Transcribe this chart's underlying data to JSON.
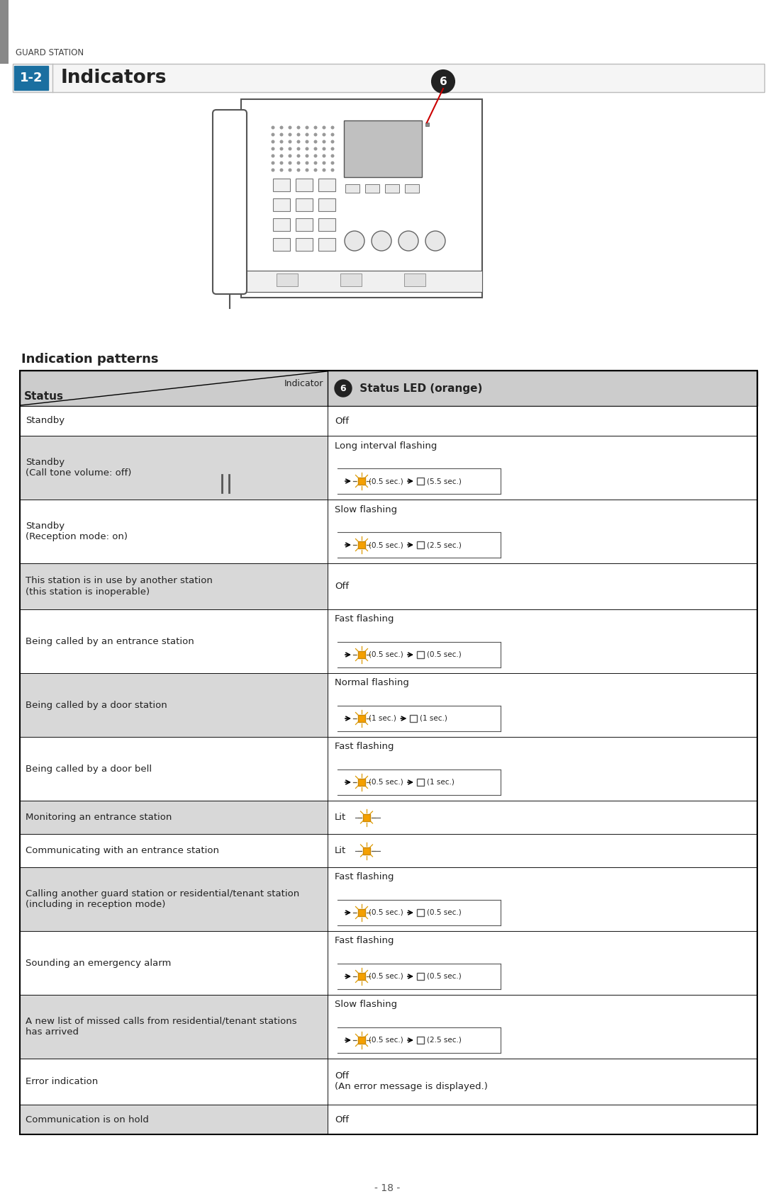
{
  "title": "Indicators",
  "section_num": "1-2",
  "header_text": "GUARD STATION",
  "indication_patterns_label": "Indication patterns",
  "col1_header": "Status",
  "col2_header_indicator": "Indicator",
  "bg_color": "#ffffff",
  "header_bg": "#cccccc",
  "row_bg_gray": "#d8d8d8",
  "row_bg_white": "#ffffff",
  "table_border": "#000000",
  "rows": [
    {
      "status": "Standby",
      "indicator": "Off",
      "type": "text",
      "bg": "white"
    },
    {
      "status": "Standby\n(Call tone volume: off)",
      "indicator": "Long interval flashing",
      "type": "flash",
      "on_sec": "0.5 sec.",
      "off_sec": "5.5 sec.",
      "bg": "gray"
    },
    {
      "status": "Standby\n(Reception mode: on)",
      "indicator": "Slow flashing",
      "type": "flash",
      "on_sec": "0.5 sec.",
      "off_sec": "2.5 sec.",
      "bg": "white"
    },
    {
      "status": "This station is in use by another station\n(this station is inoperable)",
      "indicator": "Off",
      "type": "text",
      "bg": "gray"
    },
    {
      "status": "Being called by an entrance station",
      "indicator": "Fast flashing",
      "type": "flash",
      "on_sec": "0.5 sec.",
      "off_sec": "0.5 sec.",
      "bg": "white"
    },
    {
      "status": "Being called by a door station",
      "indicator": "Normal flashing",
      "type": "flash",
      "on_sec": "1 sec.",
      "off_sec": "1 sec.",
      "bg": "gray"
    },
    {
      "status": "Being called by a door bell",
      "indicator": "Fast flashing",
      "type": "flash",
      "on_sec": "0.5 sec.",
      "off_sec": "1 sec.",
      "bg": "white"
    },
    {
      "status": "Monitoring an entrance station",
      "indicator": "Lit",
      "type": "lit",
      "bg": "gray"
    },
    {
      "status": "Communicating with an entrance station",
      "indicator": "Lit",
      "type": "lit",
      "bg": "white"
    },
    {
      "status": "Calling another guard station or residential/tenant station\n(including in reception mode)",
      "indicator": "Fast flashing",
      "type": "flash",
      "on_sec": "0.5 sec.",
      "off_sec": "0.5 sec.",
      "bg": "gray"
    },
    {
      "status": "Sounding an emergency alarm",
      "indicator": "Fast flashing",
      "type": "flash",
      "on_sec": "0.5 sec.",
      "off_sec": "0.5 sec.",
      "bg": "white"
    },
    {
      "status": "A new list of missed calls from residential/tenant stations\nhas arrived",
      "indicator": "Slow flashing",
      "type": "flash",
      "on_sec": "0.5 sec.",
      "off_sec": "2.5 sec.",
      "bg": "gray"
    },
    {
      "status": "Error indication",
      "indicator": "Off\n(An error message is displayed.)",
      "type": "text",
      "bg": "white"
    },
    {
      "status": "Communication is on hold",
      "indicator": "Off",
      "type": "text",
      "bg": "gray"
    }
  ]
}
